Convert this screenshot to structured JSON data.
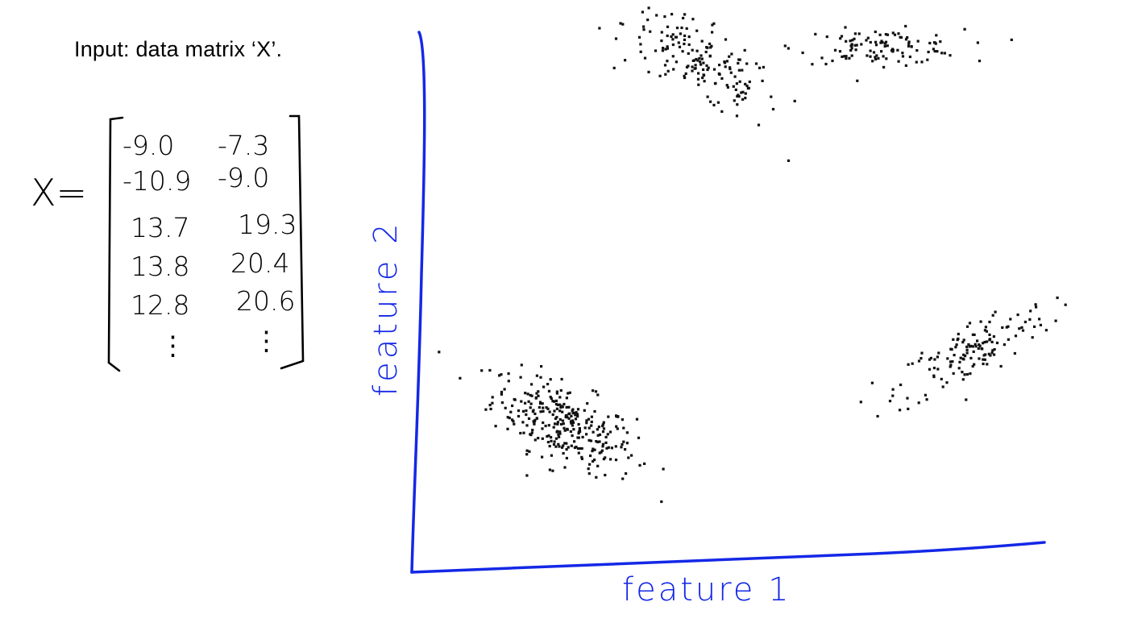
{
  "intro_text": "Input: data matrix ‘X’.",
  "matrix": {
    "label": "X=",
    "rows": [
      [
        "-9.0",
        "-7.3"
      ],
      [
        "-10.9",
        "-9.0"
      ],
      [
        "13.7",
        "19.3"
      ],
      [
        "13.8",
        "20.4"
      ],
      [
        "12.8",
        "20.6"
      ]
    ],
    "ellipsis": "⋮"
  },
  "colors": {
    "axis": "#1428e6",
    "points": "#111111",
    "text": "#000000"
  },
  "chart_data": {
    "type": "scatter",
    "xlabel": "feature 1",
    "ylabel": "feature 2",
    "xlim": [
      -20,
      25
    ],
    "ylim": [
      -20,
      25
    ],
    "grid": false,
    "clusters": [
      {
        "center": [
          -9.5,
          -8.5
        ],
        "spread": [
          2.6,
          1.6
        ],
        "count": 300,
        "tilt": -0.45
      },
      {
        "center": [
          0.5,
          21.0
        ],
        "spread": [
          2.8,
          1.6
        ],
        "count": 170,
        "tilt": -0.6
      },
      {
        "center": [
          13.5,
          22.5
        ],
        "spread": [
          3.0,
          0.7
        ],
        "count": 110,
        "tilt": 0.0
      },
      {
        "center": [
          20.2,
          -2.5
        ],
        "spread": [
          2.8,
          1.3
        ],
        "count": 140,
        "tilt": 0.55
      }
    ]
  }
}
